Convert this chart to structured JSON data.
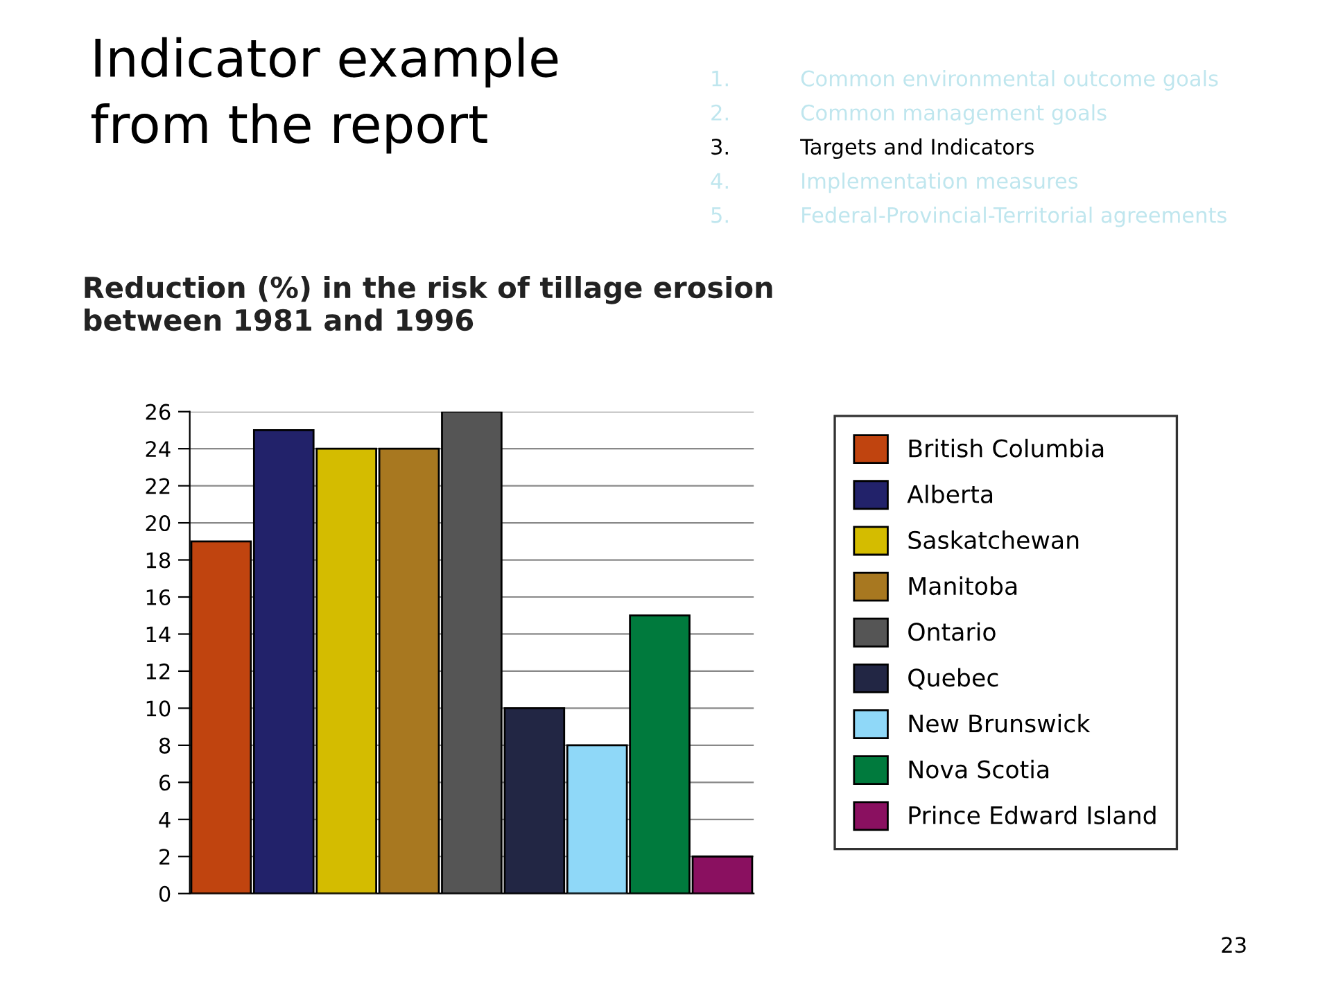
{
  "chart_data": {
    "type": "bar",
    "title": "Indicator example\nfrom the report",
    "subtitle": "Reduction (%) in the risk of tillage erosion\nbetween 1981 and 1996",
    "categories": [
      null,
      null,
      null,
      null,
      null,
      null,
      null,
      null,
      null
    ],
    "series": [
      {
        "name": "British Columbia",
        "color": "#c0440f",
        "values": [
          19,
          null,
          null,
          null,
          null,
          null,
          null,
          null,
          null
        ]
      },
      {
        "name": "Alberta",
        "color": "#22226a",
        "values": [
          null,
          25,
          null,
          null,
          null,
          null,
          null,
          null,
          null
        ]
      },
      {
        "name": "Saskatchewan",
        "color": "#d4bc00",
        "values": [
          null,
          null,
          24,
          null,
          null,
          null,
          null,
          null,
          null
        ]
      },
      {
        "name": "Manitoba",
        "color": "#a87820",
        "values": [
          null,
          null,
          null,
          24,
          null,
          null,
          null,
          null,
          null
        ]
      },
      {
        "name": "Ontario",
        "color": "#555555",
        "values": [
          null,
          null,
          null,
          null,
          26,
          null,
          null,
          null,
          null
        ]
      },
      {
        "name": "Quebec",
        "color": "#222644",
        "values": [
          null,
          null,
          null,
          null,
          null,
          10,
          null,
          null,
          null
        ]
      },
      {
        "name": "New Brunswick",
        "color": "#8fd8f8",
        "values": [
          null,
          null,
          null,
          null,
          null,
          null,
          8,
          null,
          null
        ]
      },
      {
        "name": "Nova Scotia",
        "color": "#007a3d",
        "values": [
          null,
          null,
          null,
          null,
          null,
          null,
          null,
          15,
          null
        ]
      },
      {
        "name": "Prince Edward Island",
        "color": "#8a1060",
        "values": [
          null,
          null,
          null,
          null,
          null,
          null,
          null,
          null,
          2
        ]
      }
    ],
    "ylim": [
      0,
      26
    ],
    "yticks": [
      0,
      2,
      4,
      6,
      8,
      10,
      12,
      14,
      16,
      18,
      20,
      22,
      24,
      26
    ],
    "grid": "y",
    "legend": "right",
    "annotations": [
      "1.\tCommon environmental outcome goals",
      "2.\tCommon management goals",
      "3.\tTargets and Indicators",
      "4.\tImplementation measures",
      "5.\tFederal-Provincial-Territorial agreements",
      "23"
    ]
  }
}
